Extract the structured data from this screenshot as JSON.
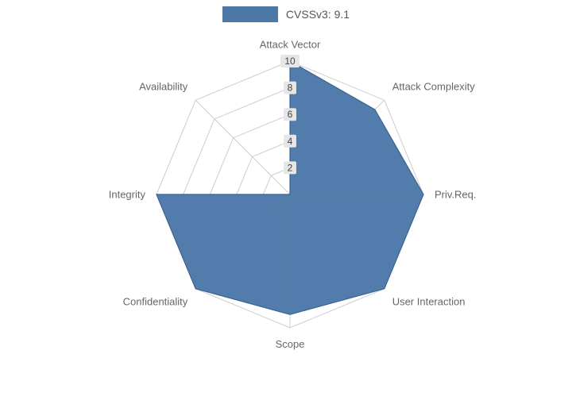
{
  "legend": {
    "label": "CVSSv3: 9.1"
  },
  "colors": {
    "series_fill": "#4c78a8",
    "series_edge": "#3a6390",
    "grid": "#cccccc",
    "axis_text": "#666666",
    "tick_bg": "#e6e6e6",
    "tick_text": "#444444"
  },
  "chart_data": {
    "type": "radar",
    "title": "CVSSv3: 9.1",
    "categories": [
      "Attack Vector",
      "Attack Complexity",
      "Priv.Req.",
      "User Interaction",
      "Scope",
      "Confidentiality",
      "Integrity",
      "Availability"
    ],
    "series": [
      {
        "name": "CVSSv3: 9.1",
        "values": [
          10,
          9,
          10,
          10,
          9,
          10,
          10,
          0
        ]
      }
    ],
    "ticks": [
      2,
      4,
      6,
      8,
      10
    ],
    "max": 10,
    "axis_count": 8,
    "legend_position": "top",
    "grid": true
  }
}
